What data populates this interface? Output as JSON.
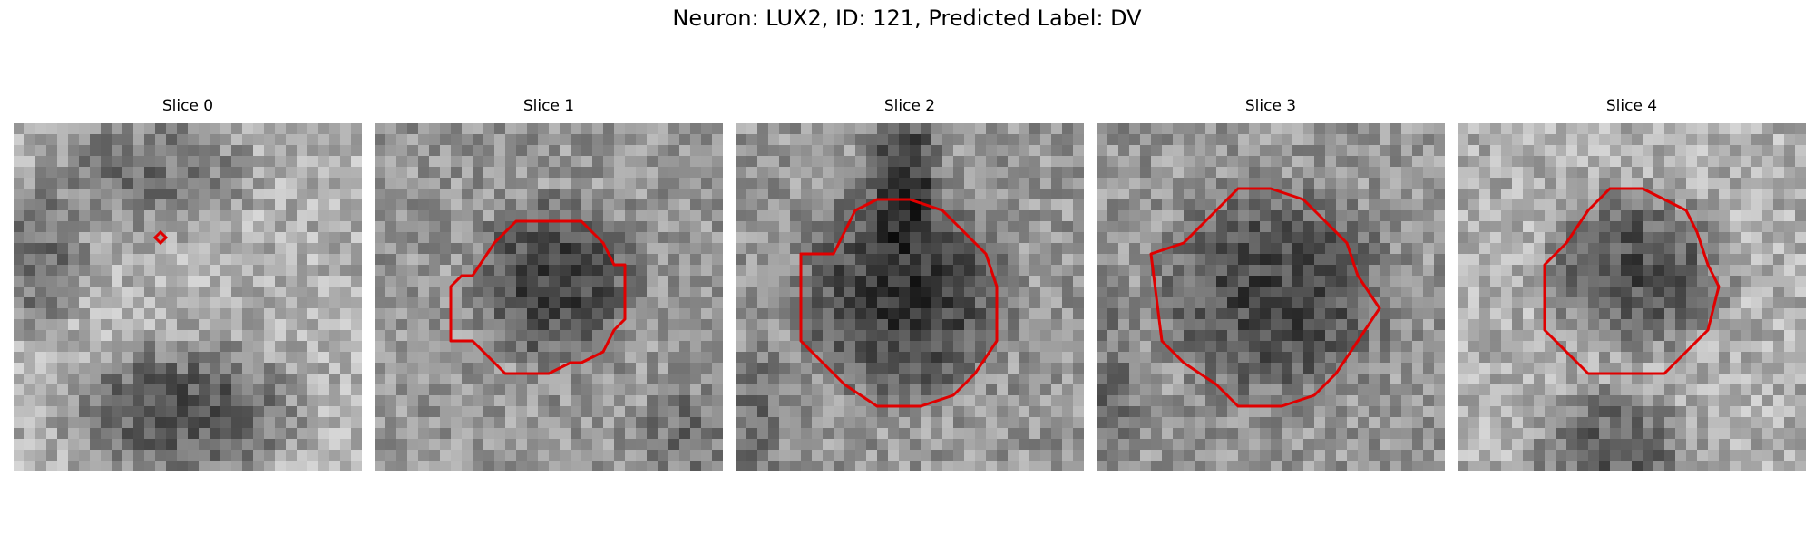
{
  "figure": {
    "title": "Neuron: LUX2, ID: 121, Predicted Label: DV",
    "contour_color": "#e00000",
    "panels": [
      {
        "title": "Slice 0",
        "base": "bright",
        "blob": "top-dark",
        "marker": "diamond"
      },
      {
        "title": "Slice 1",
        "base": "medium",
        "blob": "round",
        "marker": "contour"
      },
      {
        "title": "Slice 2",
        "base": "medium",
        "blob": "round",
        "marker": "contour"
      },
      {
        "title": "Slice 3",
        "base": "medium",
        "blob": "round",
        "marker": "contour"
      },
      {
        "title": "Slice 4",
        "base": "bright",
        "blob": "round",
        "marker": "contour"
      }
    ]
  }
}
